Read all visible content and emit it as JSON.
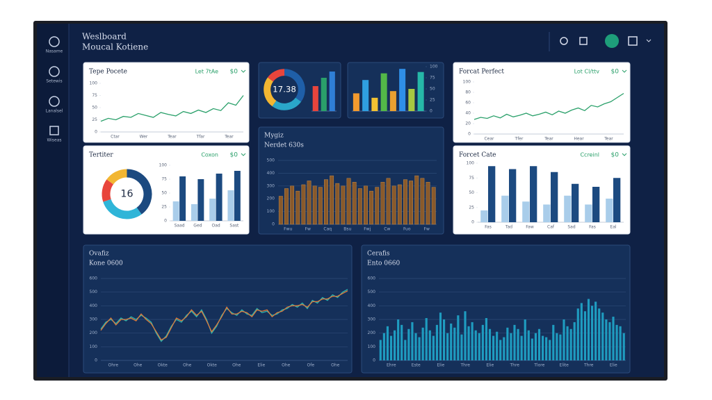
{
  "header": {
    "title": "Weslboard",
    "subtitle": "Moucal Kotiene"
  },
  "sidebar": [
    "Nasame",
    "Setewis",
    "Lanalsel",
    "Wiseas"
  ],
  "panels": [
    {
      "title": "Tepe Pocete",
      "filter": "Let 7tAe",
      "value": "$0",
      "charts": [
        {
          "type": "line",
          "series": [
            {
              "color": "#2aa06a",
              "values": [
                22,
                28,
                25,
                32,
                30,
                38,
                34,
                30,
                40,
                36,
                33,
                42,
                38,
                45,
                40,
                48,
                44,
                60,
                55,
                75
              ]
            }
          ],
          "ylim": [
            0,
            100
          ],
          "yticks": [
            0,
            25,
            50,
            75,
            100
          ],
          "xlabels": [
            "Ctar",
            "Wer",
            "Tear",
            "Tfar",
            "Tear"
          ]
        }
      ]
    },
    {
      "charts": [
        {
          "type": "donut",
          "values": [
            35,
            25,
            25,
            15
          ],
          "colors": [
            "#1f5fa8",
            "#2aa6c9",
            "#f2b632",
            "#e8453c"
          ],
          "center": "17.38"
        },
        {
          "type": "bar",
          "series": [
            {
              "colors": [
                "#e8453c",
                "#2aa06a",
                "#2f7fd6"
              ],
              "values": [
                60,
                80,
                95
              ]
            }
          ],
          "ylim": [
            0,
            100
          ],
          "yticks": []
        }
      ]
    },
    {
      "charts": [
        {
          "type": "bar",
          "series": [
            {
              "colors": [
                "#f29a2e",
                "#2f9fe0",
                "#f2c232",
                "#53b848",
                "#e8a030",
                "#2f8fe8",
                "#a8c840",
                "#26b8a8"
              ],
              "values": [
                40,
                70,
                30,
                85,
                45,
                95,
                50,
                88
              ]
            }
          ],
          "ylim": [
            0,
            100
          ],
          "yticks": [
            0,
            25,
            50,
            75,
            100
          ],
          "yaxis_side": "right"
        }
      ]
    },
    {
      "title": "Forcat Perfect",
      "filter": "Lot Cl/ttv",
      "value": "$0",
      "charts": [
        {
          "type": "line",
          "series": [
            {
              "color": "#2aa06a",
              "values": [
                28,
                32,
                30,
                35,
                31,
                38,
                33,
                36,
                40,
                35,
                38,
                42,
                37,
                44,
                40,
                46,
                50,
                45,
                55,
                52,
                58,
                62,
                70,
                78
              ]
            }
          ],
          "ylim": [
            0,
            100
          ],
          "yticks": [
            0,
            20,
            40,
            60,
            80,
            100
          ],
          "xlabels": [
            "Cear",
            "Tfer",
            "Tear",
            "Hear",
            "Tear"
          ]
        }
      ]
    },
    {
      "title": "Tertiter",
      "filter": "Coxon",
      "value": "$0",
      "charts": [
        {
          "type": "donut",
          "values": [
            40,
            30,
            15,
            15
          ],
          "colors": [
            "#1c4a80",
            "#2fb5d8",
            "#e8453c",
            "#f2b632"
          ],
          "center": "16"
        },
        {
          "type": "bar",
          "series": [
            {
              "color": "#a9cdea",
              "values": [
                35,
                30,
                40,
                55
              ]
            },
            {
              "color": "#1c4a80",
              "values": [
                80,
                75,
                85,
                90
              ]
            }
          ],
          "ylim": [
            0,
            100
          ],
          "yticks": [
            0,
            25,
            50,
            75,
            100
          ],
          "xlabels": [
            "Saad",
            "Ged",
            "Oad",
            "Sast"
          ]
        }
      ]
    },
    {
      "title": "Mygiz",
      "subtitle": "Nerdet 630s",
      "charts": [
        {
          "type": "bar",
          "series": [
            {
              "color": "#8a5a2b",
              "values": [
                220,
                280,
                300,
                260,
                310,
                340,
                300,
                290,
                350,
                380,
                320,
                300,
                360,
                330,
                280,
                300,
                260,
                290,
                330,
                360,
                300,
                310,
                350,
                340,
                380,
                360,
                330,
                290
              ]
            }
          ],
          "ylim": [
            0,
            500
          ],
          "yticks": [
            0,
            100,
            200,
            300,
            400,
            500
          ],
          "grid": true,
          "xlabels": [
            "Fwu",
            "Fw",
            "Caq",
            "Bsu",
            "Fwj",
            "Cw",
            "Fuo",
            "Fw"
          ]
        }
      ]
    },
    {
      "title": "Forcet Cate",
      "filter": "Ccreinl",
      "value": "$0",
      "charts": [
        {
          "type": "bar",
          "series": [
            {
              "color": "#a9cdea",
              "values": [
                20,
                45,
                35,
                30,
                45,
                30,
                40
              ]
            },
            {
              "color": "#1c4a80",
              "values": [
                95,
                90,
                95,
                85,
                65,
                60,
                75
              ]
            }
          ],
          "ylim": [
            0,
            100
          ],
          "yticks": [
            0,
            25,
            50,
            75,
            100
          ],
          "xlabels": [
            "Fas",
            "Tad",
            "Faw",
            "Caf",
            "Sad",
            "Fas",
            "Eal"
          ]
        }
      ]
    },
    {
      "title": "Ovafiz",
      "subtitle": "Kone 0600",
      "charts": [
        {
          "type": "line",
          "series": [
            {
              "color": "#2bb5b0",
              "values": [
                230,
                280,
                300,
                270,
                310,
                290,
                320,
                300,
                330,
                310,
                280,
                200,
                140,
                180,
                250,
                300,
                280,
                330,
                360,
                320,
                370,
                300,
                200,
                250,
                330,
                380,
                350,
                330,
                370,
                340,
                330,
                380,
                350,
                360,
                330,
                340,
                370,
                380,
                410,
                390,
                420,
                380,
                440,
                420,
                460,
                440,
                480,
                460,
                500,
                520
              ]
            },
            {
              "color": "#e07a3a",
              "values": [
                220,
                270,
                310,
                260,
                300,
                300,
                310,
                290,
                340,
                300,
                270,
                210,
                150,
                170,
                240,
                310,
                290,
                320,
                370,
                330,
                360,
                290,
                210,
                260,
                320,
                390,
                340,
                340,
                360,
                350,
                320,
                370,
                360,
                370,
                320,
                350,
                360,
                390,
                400,
                400,
                410,
                390,
                430,
                430,
                450,
                450,
                470,
                470,
                490,
                510
              ]
            }
          ],
          "ylim": [
            0,
            600
          ],
          "yticks": [
            0,
            100,
            200,
            300,
            400,
            500,
            600
          ],
          "grid": true,
          "xlabels": [
            "Ohre",
            "Ohe",
            "Okte",
            "Ohe",
            "Okte",
            "Ohe",
            "Elie",
            "Ohe",
            "Ofe",
            "Ohe"
          ]
        }
      ]
    },
    {
      "title": "Cerafis",
      "subtitle": "Ento 0660",
      "charts": [
        {
          "type": "bar",
          "series": [
            {
              "color": "#1f9cc0",
              "values": [
                150,
                200,
                250,
                180,
                220,
                300,
                260,
                150,
                230,
                280,
                200,
                170,
                240,
                310,
                220,
                180,
                260,
                350,
                300,
                200,
                270,
                240,
                330,
                190,
                360,
                250,
                280,
                220,
                200,
                260,
                310,
                230,
                180,
                210,
                150,
                170,
                240,
                200,
                260,
                230,
                180,
                300,
                220,
                160,
                200,
                230,
                180,
                170,
                150,
                260,
                200,
                190,
                300,
                250,
                230,
                280,
                380,
                420,
                360,
                450,
                400,
                430,
                380,
                350,
                300,
                280,
                320,
                260,
                250,
                200
              ]
            }
          ],
          "ylim": [
            0,
            600
          ],
          "yticks": [
            0,
            100,
            200,
            300,
            400,
            500,
            600
          ],
          "grid": true,
          "xlabels": [
            "Ehre",
            "Este",
            "Elie",
            "Thre",
            "Elie",
            "Thre",
            "Tlore",
            "Elite",
            "Thre",
            "Elie"
          ]
        }
      ]
    }
  ]
}
